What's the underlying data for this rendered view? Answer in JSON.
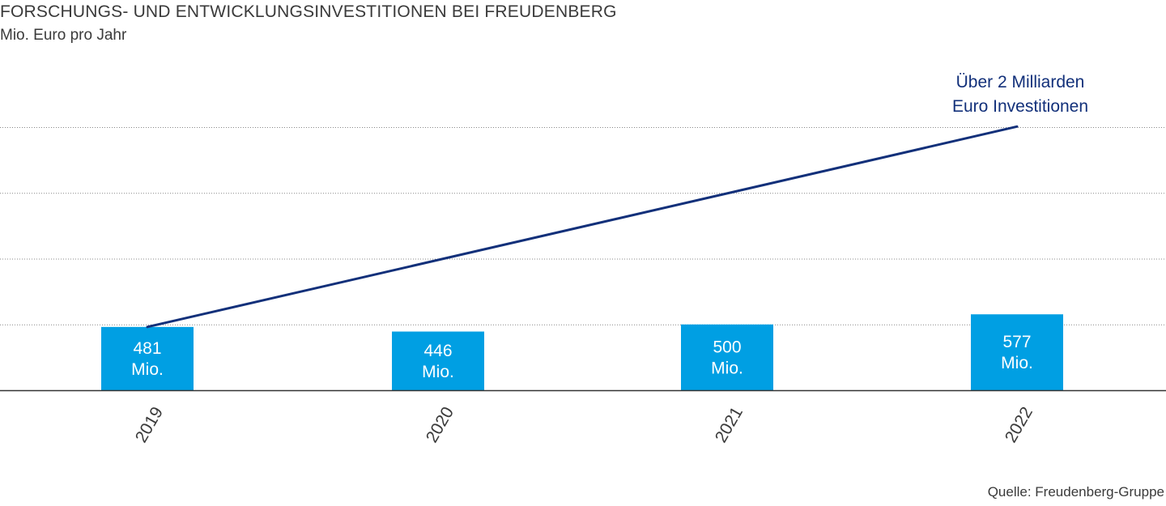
{
  "title": "FORSCHUNGS- UND ENTWICKLUNGSINVESTITIONEN BEI FREUDENBERG",
  "subtitle": "Mio. Euro pro Jahr",
  "source": "Quelle: Freudenberg-Gruppe",
  "chart_data": {
    "type": "bar",
    "categories": [
      "2019",
      "2020",
      "2021",
      "2022"
    ],
    "values": [
      481,
      446,
      500,
      577
    ],
    "value_labels": [
      [
        "481",
        "Mio."
      ],
      [
        "446",
        "Mio."
      ],
      [
        "500",
        "Mio."
      ],
      [
        "577",
        "Mio."
      ]
    ],
    "ylim": [
      0,
      2000
    ],
    "grid": true,
    "trend_line": {
      "type": "line",
      "x": [
        "2019",
        "2022"
      ],
      "y": [
        481,
        2004
      ]
    },
    "annotation": [
      "Über 2 Milliarden",
      "Euro Investitionen"
    ],
    "colors": {
      "bar": "#009fe3",
      "line": "#12307a",
      "annotation": "#12307a",
      "grid": "#888888"
    }
  }
}
